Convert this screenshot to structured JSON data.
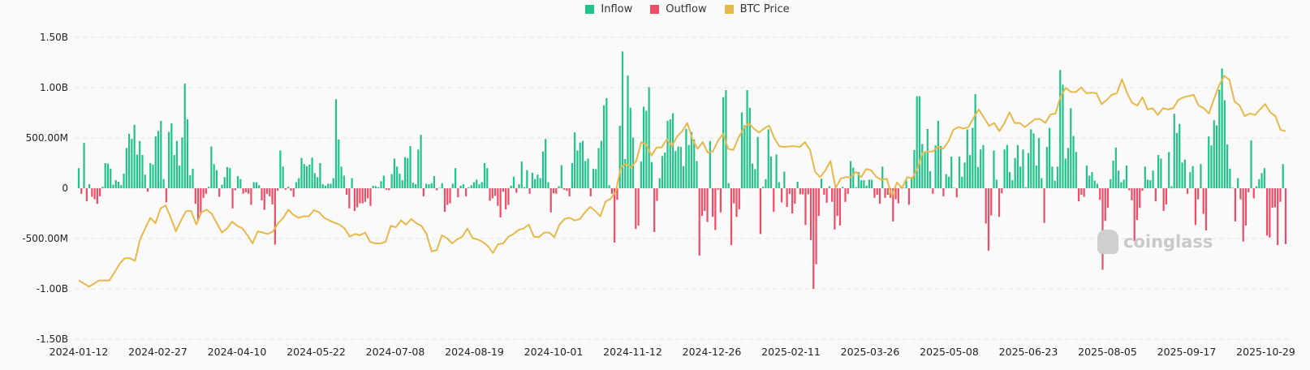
{
  "legend": [
    {
      "label": "Inflow",
      "color": "#1fc48b"
    },
    {
      "label": "Outflow",
      "color": "#ee4d66"
    },
    {
      "label": "BTC Price",
      "color": "#e8b84a"
    }
  ],
  "watermark": "coinglass",
  "chart_data": {
    "type": "bar+line",
    "title": "",
    "xlabel": "",
    "ylabel": "",
    "ylim": [
      -1500000000,
      1500000000
    ],
    "grid": true,
    "legend_position": "top",
    "y_ticks": [
      {
        "value": 1500000000,
        "label": "1.50B"
      },
      {
        "value": 1000000000,
        "label": "1.00B"
      },
      {
        "value": 500000000,
        "label": "500.00M"
      },
      {
        "value": 0,
        "label": "0"
      },
      {
        "value": -500000000,
        "label": "-500.00M"
      },
      {
        "value": -1000000000,
        "label": "-1.00B"
      },
      {
        "value": -1500000000,
        "label": "-1.50B"
      }
    ],
    "x_tick_labels": [
      "2024-01-12",
      "2024-02-27",
      "2024-04-10",
      "2024-05-22",
      "2024-07-08",
      "2024-08-19",
      "2024-10-01",
      "2024-11-12",
      "2024-12-26",
      "2025-02-11",
      "2025-03-26",
      "2025-05-08",
      "2025-06-23",
      "2025-08-05",
      "2025-09-17",
      "2025-10-29"
    ],
    "bar_unit": "millions USD (positive = Inflow, negative = Outflow)",
    "bar_values": [
      200,
      -55,
      450,
      -130,
      40,
      -85,
      -110,
      -155,
      -80,
      15,
      250,
      245,
      195,
      35,
      80,
      65,
      30,
      145,
      400,
      540,
      490,
      630,
      335,
      470,
      330,
      135,
      -35,
      250,
      235,
      515,
      570,
      670,
      90,
      -140,
      560,
      645,
      330,
      470,
      225,
      505,
      1040,
      685,
      130,
      195,
      -155,
      -315,
      -260,
      -95,
      -55,
      15,
      415,
      240,
      180,
      -85,
      35,
      110,
      210,
      200,
      -200,
      -20,
      120,
      90,
      -55,
      -40,
      -55,
      -165,
      60,
      60,
      30,
      -120,
      -215,
      -55,
      -80,
      -160,
      -560,
      -25,
      375,
      215,
      -15,
      15,
      -25,
      -85,
      60,
      100,
      300,
      240,
      220,
      235,
      305,
      150,
      110,
      250,
      40,
      25,
      45,
      45,
      100,
      885,
      485,
      215,
      125,
      -65,
      -200,
      100,
      -225,
      -190,
      -150,
      -150,
      -135,
      -100,
      -175,
      25,
      20,
      10,
      70,
      125,
      -15,
      -20,
      140,
      295,
      215,
      145,
      80,
      310,
      300,
      420,
      55,
      40,
      385,
      530,
      -80,
      45,
      40,
      50,
      120,
      -20,
      5,
      50,
      -235,
      -165,
      -150,
      45,
      200,
      -90,
      25,
      40,
      -80,
      10,
      30,
      60,
      85,
      40,
      60,
      250,
      200,
      -125,
      -100,
      -75,
      -175,
      -290,
      -35,
      -210,
      -165,
      25,
      115,
      -45,
      40,
      265,
      10,
      180,
      -55,
      155,
      90,
      135,
      100,
      365,
      490,
      60,
      -240,
      -50,
      -55,
      20,
      230,
      -15,
      -25,
      -80,
      250,
      555,
      375,
      455,
      470,
      270,
      295,
      -80,
      195,
      190,
      400,
      470,
      825,
      895,
      30,
      -55,
      -540,
      -115,
      620,
      1360,
      290,
      1120,
      800,
      505,
      -405,
      -370,
      265,
      810,
      770,
      1005,
      260,
      -435,
      -125,
      100,
      320,
      355,
      670,
      685,
      745,
      370,
      415,
      410,
      220,
      590,
      430,
      560,
      485,
      270,
      -670,
      -275,
      -225,
      -335,
      470,
      -285,
      -415,
      -15,
      -240,
      905,
      975,
      50,
      -565,
      -150,
      -285,
      -210,
      755,
      625,
      975,
      800,
      245,
      190,
      510,
      -455,
      15,
      90,
      585,
      315,
      -235,
      335,
      60,
      -140,
      165,
      -185,
      -55,
      -250,
      -155,
      65,
      -60,
      -60,
      -365,
      -60,
      -515,
      -1000,
      -755,
      -275,
      95,
      -65,
      -145,
      20,
      -135,
      -410,
      -275,
      -370,
      15,
      -135,
      -55,
      270,
      205,
      10,
      160,
      80,
      80,
      25,
      85,
      85,
      -95,
      -65,
      -155,
      215,
      -95,
      -65,
      -95,
      -330,
      -110,
      -150,
      5,
      5,
      75,
      -165,
      110,
      380,
      915,
      915,
      440,
      355,
      590,
      170,
      -55,
      425,
      670,
      420,
      -80,
      140,
      115,
      315,
      5,
      -90,
      315,
      115,
      255,
      585,
      330,
      600,
      935,
      210,
      385,
      430,
      -350,
      -620,
      -270,
      375,
      85,
      -285,
      -50,
      385,
      430,
      160,
      80,
      300,
      430,
      215,
      385,
      10,
      350,
      585,
      545,
      225,
      500,
      100,
      -345,
      410,
      600,
      215,
      75,
      215,
      1175,
      1030,
      295,
      400,
      795,
      520,
      360,
      -130,
      -65,
      -85,
      225,
      125,
      160,
      75,
      45,
      -115,
      -810,
      -325,
      -195,
      90,
      275,
      405,
      175,
      60,
      85,
      225,
      -20,
      -120,
      -525,
      -315,
      -195,
      -25,
      215,
      85,
      80,
      175,
      -130,
      330,
      295,
      -225,
      -160,
      360,
      20,
      740,
      550,
      640,
      255,
      285,
      -55,
      160,
      220,
      -365,
      -110,
      240,
      -255,
      -420,
      515,
      425,
      675,
      625,
      980,
      1190,
      875,
      435,
      195,
      5,
      -330,
      100,
      -110,
      -530,
      -370,
      -40,
      475,
      -100,
      20,
      90,
      150,
      200,
      -470,
      -490,
      -195,
      -190,
      -565,
      -135,
      240,
      -555
    ],
    "line_name": "BTC Price",
    "line_unit": "USD",
    "line_values": [
      39700,
      38500,
      37100,
      38400,
      39700,
      39700,
      39700,
      43000,
      46600,
      48900,
      48900,
      47800,
      56700,
      61200,
      65600,
      63400,
      69500,
      70700,
      65600,
      60000,
      64500,
      68400,
      68400,
      62800,
      67900,
      69000,
      67300,
      63400,
      59500,
      61200,
      64000,
      62300,
      61200,
      58400,
      55000,
      60000,
      59500,
      58900,
      60000,
      63400,
      65600,
      69000,
      66800,
      65600,
      66200,
      66200,
      68800,
      67900,
      65600,
      64500,
      63600,
      62800,
      61200,
      57800,
      58900,
      58400,
      59500,
      55600,
      55000,
      55000,
      55600,
      62300,
      61700,
      64500,
      62800,
      65100,
      63400,
      62300,
      58900,
      51700,
      52200,
      58400,
      57200,
      55000,
      56700,
      57800,
      61200,
      57200,
      56700,
      55600,
      53900,
      51100,
      54700,
      55000,
      57800,
      58900,
      60600,
      61200,
      62800,
      57800,
      57600,
      59500,
      59500,
      57600,
      62800,
      65100,
      65600,
      64500,
      65100,
      67900,
      70100,
      68400,
      66200,
      72300,
      73500,
      76300,
      86300,
      88000,
      86300,
      89100,
      96900,
      95800,
      91300,
      94700,
      94700,
      98100,
      95200,
      99200,
      101400,
      104800,
      98100,
      94100,
      96900,
      92500,
      93000,
      97500,
      100300,
      94100,
      93600,
      98600,
      102500,
      104800,
      102500,
      100800,
      102500,
      103700,
      98600,
      95200,
      94900,
      95200,
      95200,
      94900,
      96900,
      93600,
      84600,
      82400,
      85200,
      89100,
      77900,
      81800,
      82400,
      82400,
      84600,
      82400,
      85800,
      85200,
      82400,
      81300,
      81800,
      74600,
      80200,
      77900,
      82400,
      81800,
      85800,
      92500,
      93000,
      93000,
      94900,
      94100,
      96900,
      101900,
      103100,
      102500,
      103100,
      107000,
      110400,
      107000,
      103600,
      104800,
      101400,
      104800,
      109200,
      104800,
      104800,
      103100,
      104800,
      106400,
      106400,
      104800,
      108300,
      108700,
      115900,
      119300,
      117600,
      117600,
      119500,
      117100,
      117300,
      117100,
      112600,
      114300,
      116500,
      117100,
      122900,
      117100,
      113100,
      112000,
      115400,
      110400,
      110900,
      108100,
      110900,
      110400,
      110900,
      114300,
      115400,
      115900,
      116500,
      112000,
      110900,
      108700,
      114800,
      120400,
      124300,
      122600,
      113700,
      112000,
      107600,
      108700,
      108100,
      110400,
      112600,
      109200,
      107600,
      102000,
      101400
    ]
  }
}
